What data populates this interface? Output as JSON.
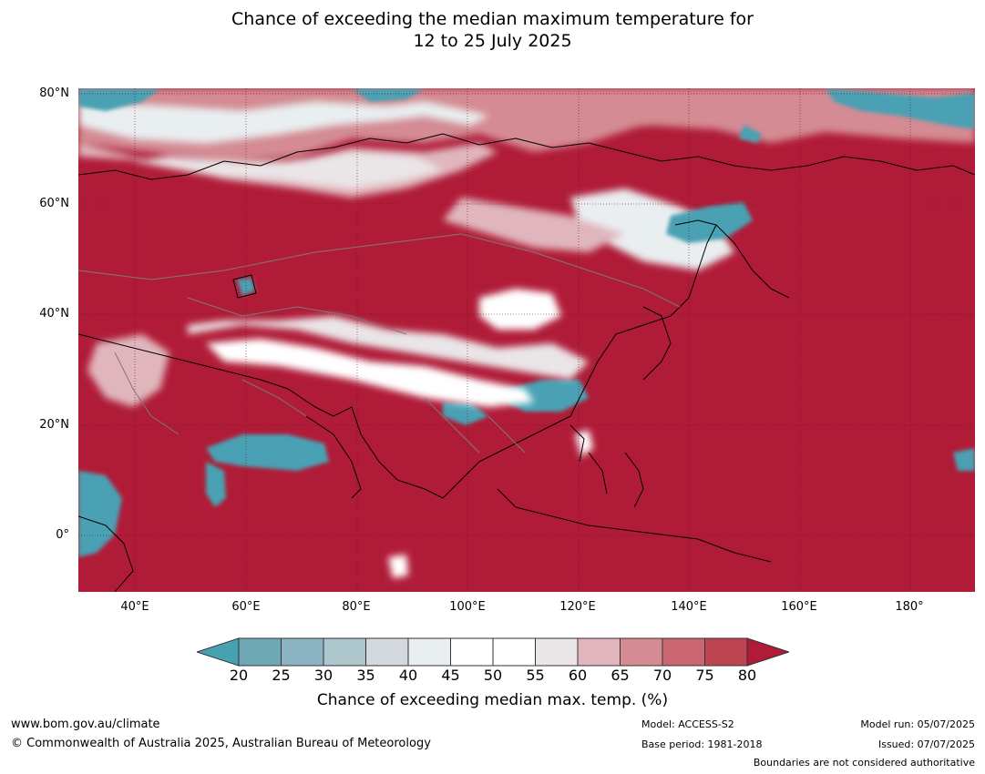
{
  "title": {
    "line1": "Chance of exceeding the median maximum temperature for",
    "line2": "12 to 25 July 2025"
  },
  "map": {
    "lat_labels": [
      "80°N",
      "60°N",
      "40°N",
      "20°N",
      "0°"
    ],
    "lon_labels": [
      "40°E",
      "60°E",
      "80°E",
      "100°E",
      "120°E",
      "140°E",
      "160°E",
      "180°"
    ]
  },
  "colors": {
    "high": "#b01c38",
    "low": "#48a1b3",
    "neutral": "#f7f7f7"
  },
  "colorbar": {
    "ticks": [
      "20",
      "25",
      "30",
      "35",
      "40",
      "45",
      "50",
      "55",
      "60",
      "65",
      "70",
      "75",
      "80"
    ],
    "bin_colors": [
      "#48a1b3",
      "#6ea8b5",
      "#8bb5c3",
      "#acc6cb",
      "#d3d9dc",
      "#e9eef0",
      "#ffffff",
      "#ffffff",
      "#eae5e7",
      "#e0b6bc",
      "#d48b93",
      "#c96671",
      "#bd4451",
      "#b01c38"
    ],
    "label": "Chance of exceeding median max. temp. (%)"
  },
  "footer": {
    "url": "www.bom.gov.au/climate",
    "copyright": "© Commonwealth of Australia 2025, Australian Bureau of Meteorology",
    "model": "Model: ACCESS-S2",
    "base_period": "Base period: 1981-2018",
    "model_run": "Model run: 05/07/2025",
    "issued": "Issued: 07/07/2025",
    "disclaimer": "Boundaries are not considered authoritative"
  }
}
